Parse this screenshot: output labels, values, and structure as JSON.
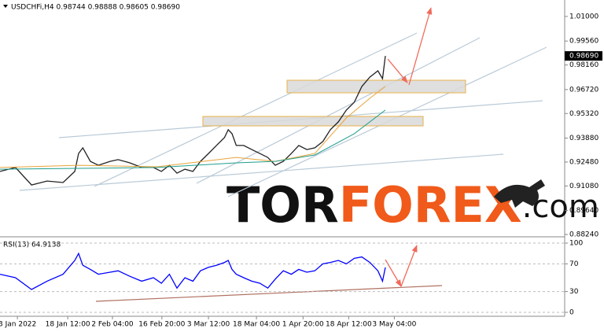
{
  "chart_data": [
    {
      "type": "line",
      "title": "USDCHFi,H4 0.98744 0.98888 0.98605 0.98690",
      "x": [
        0,
        3.3,
        6.7,
        10,
        13.4,
        15.9,
        16.7,
        17.6,
        19.2,
        20.9,
        23.4,
        25.1,
        27.6,
        30.1,
        32.6,
        34.3,
        36,
        37.6,
        39.3,
        41,
        42.6,
        44.3,
        46,
        47.7,
        48.5,
        49.3,
        50.2,
        51.8,
        53.5,
        55.2,
        56.9,
        58.5,
        60.2,
        61.9,
        63.5,
        65.2,
        66.9,
        68.6,
        70.2,
        71.9,
        73.6,
        75.3,
        76.9,
        78.6,
        80.3,
        81.3,
        81.9
      ],
      "series": [
        {
          "color": "#222222",
          "values": [
            0.9193,
            0.9216,
            0.9114,
            0.9137,
            0.9128,
            0.9193,
            0.9298,
            0.9331,
            0.9252,
            0.9229,
            0.9252,
            0.9262,
            0.9243,
            0.9216,
            0.9216,
            0.9193,
            0.9229,
            0.9183,
            0.9206,
            0.9193,
            0.9252,
            0.9298,
            0.9345,
            0.9391,
            0.9437,
            0.9414,
            0.9345,
            0.9345,
            0.9321,
            0.9298,
            0.9275,
            0.9229,
            0.9252,
            0.9298,
            0.9345,
            0.9321,
            0.9331,
            0.9368,
            0.9437,
            0.9483,
            0.9552,
            0.9598,
            0.969,
            0.9745,
            0.9782,
            0.9736,
            0.9869
          ]
        },
        {
          "color": "#e8a33a",
          "x": [
            0,
            16.7,
            33.4,
            50.2,
            58.5,
            66.9,
            73.6,
            78.6,
            81.9
          ],
          "values": [
            0.9216,
            0.9229,
            0.922,
            0.9275,
            0.9252,
            0.9298,
            0.9506,
            0.9621,
            0.969
          ]
        },
        {
          "color": "#1e9e8e",
          "x": [
            0,
            16.7,
            33.4,
            50.2,
            58.5,
            66.9,
            75.3,
            81.9
          ],
          "values": [
            0.9206,
            0.9211,
            0.9216,
            0.9243,
            0.9252,
            0.9289,
            0.9414,
            0.9552
          ]
        }
      ],
      "last_label": {
        "value": 0.9869,
        "label": "0.98690"
      },
      "xlim": [
        0,
        120
      ],
      "ylim": [
        0.8815,
        1.0187
      ],
      "yticks": [
        {
          "value": 1.01,
          "label": "1.01000"
        },
        {
          "value": 0.9956,
          "label": "0.99560"
        },
        {
          "value": 0.9816,
          "label": "0.98160"
        },
        {
          "value": 0.9672,
          "label": "0.96720"
        },
        {
          "value": 0.9532,
          "label": "0.95320"
        },
        {
          "value": 0.9388,
          "label": "0.93880"
        },
        {
          "value": 0.9248,
          "label": "0.92480"
        },
        {
          "value": 0.9108,
          "label": "0.91080"
        },
        {
          "value": 0.8964,
          "label": "0.89640"
        },
        {
          "value": 0.8824,
          "label": "0.88240"
        }
      ],
      "grid": false,
      "watermark": [
        "TOR",
        "FOREX",
        ".com"
      ]
    },
    {
      "type": "line",
      "title": "RSI(13) 64.9138",
      "x": [
        0,
        3.3,
        6.7,
        10,
        13.4,
        15.9,
        16.7,
        17.6,
        19.2,
        20.9,
        23.4,
        25.1,
        27.6,
        30.1,
        32.6,
        34.3,
        36,
        37.6,
        39.3,
        41,
        42.6,
        44.3,
        46,
        47.7,
        48.5,
        49.3,
        50.2,
        51.8,
        53.5,
        55.2,
        56.9,
        58.5,
        60.2,
        61.9,
        63.5,
        65.2,
        66.9,
        68.6,
        70.2,
        71.9,
        73.6,
        75.3,
        76.9,
        78.6,
        80.3,
        81.3,
        81.9
      ],
      "series": [
        {
          "color": "#0000ff",
          "values": [
            55,
            50,
            33,
            45,
            55,
            75,
            85,
            68,
            62,
            55,
            58,
            60,
            52,
            45,
            50,
            42,
            55,
            35,
            50,
            45,
            60,
            65,
            68,
            72,
            75,
            62,
            55,
            50,
            45,
            42,
            35,
            48,
            60,
            55,
            62,
            58,
            60,
            70,
            72,
            75,
            70,
            78,
            80,
            72,
            60,
            45,
            64.9
          ]
        }
      ],
      "xlim": [
        0,
        120
      ],
      "ylim": [
        0,
        100
      ],
      "yticks": [
        100,
        70,
        30,
        0
      ],
      "grid": true,
      "xticks": [
        {
          "value": 3.7,
          "label": "3 Jan 2022"
        },
        {
          "value": 14.4,
          "label": "18 Jan 12:00"
        },
        {
          "value": 23.9,
          "label": "2 Feb 04:00"
        },
        {
          "value": 34.4,
          "label": "16 Feb 20:00"
        },
        {
          "value": 44.3,
          "label": "3 Mar 12:00"
        },
        {
          "value": 54.5,
          "label": "18 Mar 04:00"
        },
        {
          "value": 64.4,
          "label": "1 Apr 20:00"
        },
        {
          "value": 74.1,
          "label": "18 Apr 12:00"
        },
        {
          "value": 83.8,
          "label": "3 May 04:00"
        }
      ]
    }
  ]
}
